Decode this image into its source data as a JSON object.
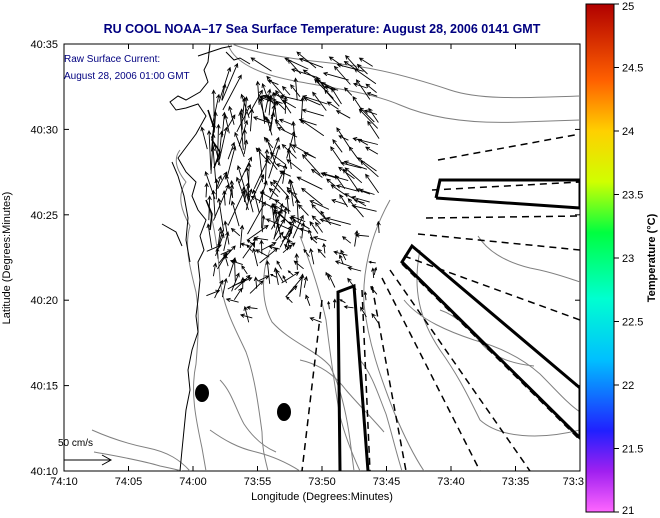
{
  "title": "RU COOL  NOAA–17  Sea Surface Temperature:  August 28, 2006 0141 GMT",
  "annotation": {
    "line1": "Raw Surface Current:",
    "line2": "August 28, 2006 01:00 GMT"
  },
  "scale_label": "50 cm/s",
  "axes": {
    "xlabel": "Longitude (Degrees:Minutes)",
    "ylabel": "Latitude (Degrees:Minutes)",
    "xticks": [
      "74:10",
      "74:05",
      "74:00",
      "73:55",
      "73:50",
      "73:45",
      "73:40",
      "73:35",
      "73:3"
    ],
    "yticks": [
      "40:35",
      "40:30",
      "40:25",
      "40:20",
      "40:15",
      "40:10"
    ]
  },
  "colorbar": {
    "label": "Temperature (°C)",
    "ticks": [
      "25",
      "24.5",
      "24",
      "23.5",
      "23",
      "22.5",
      "22",
      "21.5",
      "21"
    ],
    "min": 21,
    "max": 25
  },
  "colors": {
    "title": "#000080",
    "annotation": "#000080",
    "contour": "#808080",
    "coast": "#000000"
  }
}
